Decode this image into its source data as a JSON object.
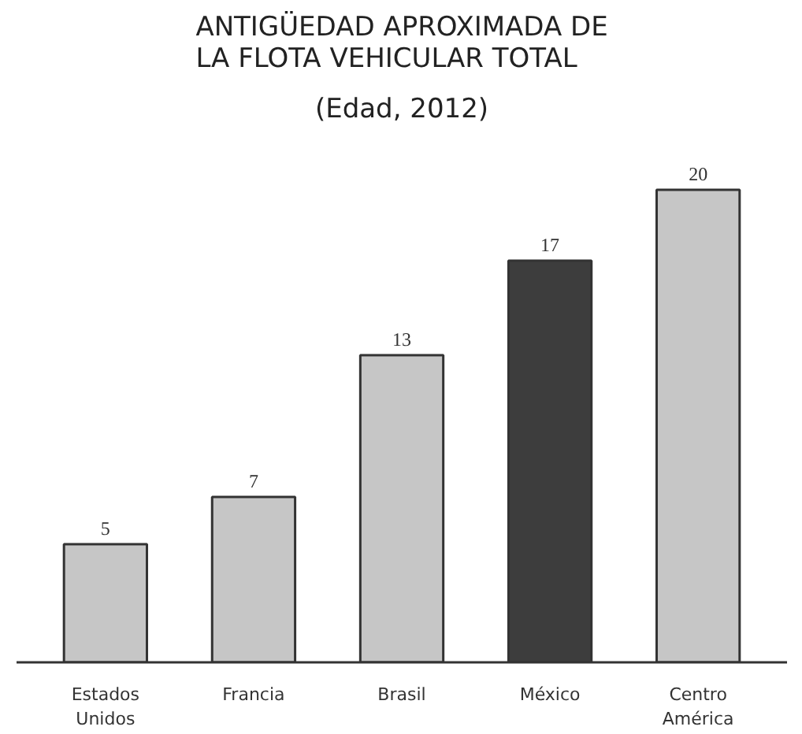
{
  "chart_data": {
    "type": "bar",
    "title": "ANTIGÜEDAD APROXIMADA DE\nLA FLOTA VEHICULAR TOTAL",
    "subtitle": "(Edad, 2012)",
    "categories": [
      "Estados\nUnidos",
      "Francia",
      "Brasil",
      "México",
      "Centro\nAmérica"
    ],
    "values": [
      5,
      7,
      13,
      17,
      20
    ],
    "colors": [
      "#c6c6c6",
      "#c6c6c6",
      "#c6c6c6",
      "#3d3d3d",
      "#c6c6c6"
    ],
    "data_labels": true
  }
}
